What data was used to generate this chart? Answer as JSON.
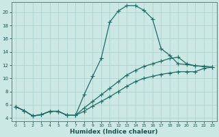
{
  "xlabel": "Humidex (Indice chaleur)",
  "background_color": "#cce8e4",
  "grid_color": "#aacfcc",
  "line_color": "#1a6b65",
  "spine_color": "#3a8a80",
  "tick_color": "#1a5050",
  "xlim": [
    -0.5,
    23.5
  ],
  "ylim": [
    3.5,
    21.5
  ],
  "yticks": [
    4,
    6,
    8,
    10,
    12,
    14,
    16,
    18,
    20
  ],
  "xticks": [
    0,
    1,
    2,
    3,
    4,
    5,
    6,
    7,
    8,
    9,
    10,
    11,
    12,
    13,
    14,
    15,
    16,
    17,
    18,
    19,
    20,
    21,
    22,
    23
  ],
  "line1_x": [
    0,
    1,
    2,
    3,
    4,
    5,
    6,
    7,
    8,
    9,
    10,
    11,
    12,
    13,
    14,
    15,
    16,
    17,
    18,
    19,
    20,
    21,
    22,
    23
  ],
  "line1_y": [
    5.7,
    5.1,
    4.3,
    4.5,
    5.0,
    5.0,
    4.4,
    4.4,
    7.5,
    10.3,
    13.0,
    18.5,
    20.2,
    21.0,
    21.0,
    20.3,
    19.0,
    14.5,
    13.5,
    12.2,
    12.1,
    11.9,
    11.8,
    11.7
  ],
  "line2_x": [
    0,
    1,
    2,
    3,
    4,
    5,
    6,
    7,
    8,
    9,
    10,
    11,
    12,
    13,
    14,
    15,
    16,
    17,
    18,
    19,
    20,
    21,
    22,
    23
  ],
  "line2_y": [
    5.7,
    5.1,
    4.3,
    4.5,
    5.0,
    5.0,
    4.4,
    4.4,
    5.5,
    6.5,
    7.5,
    8.5,
    9.5,
    10.5,
    11.2,
    11.8,
    12.2,
    12.6,
    13.0,
    13.2,
    12.2,
    11.9,
    11.8,
    11.7
  ],
  "line3_x": [
    0,
    1,
    2,
    3,
    4,
    5,
    6,
    7,
    8,
    9,
    10,
    11,
    12,
    13,
    14,
    15,
    16,
    17,
    18,
    19,
    20,
    21,
    22,
    23
  ],
  "line3_y": [
    5.7,
    5.1,
    4.3,
    4.5,
    5.0,
    5.0,
    4.4,
    4.4,
    5.0,
    5.8,
    6.5,
    7.2,
    8.0,
    8.8,
    9.5,
    10.0,
    10.3,
    10.6,
    10.8,
    11.0,
    11.0,
    11.0,
    11.5,
    11.7
  ],
  "marker_size": 2.0,
  "line_width": 0.9,
  "xlabel_fontsize": 6.5,
  "tick_fontsize": 5.0
}
